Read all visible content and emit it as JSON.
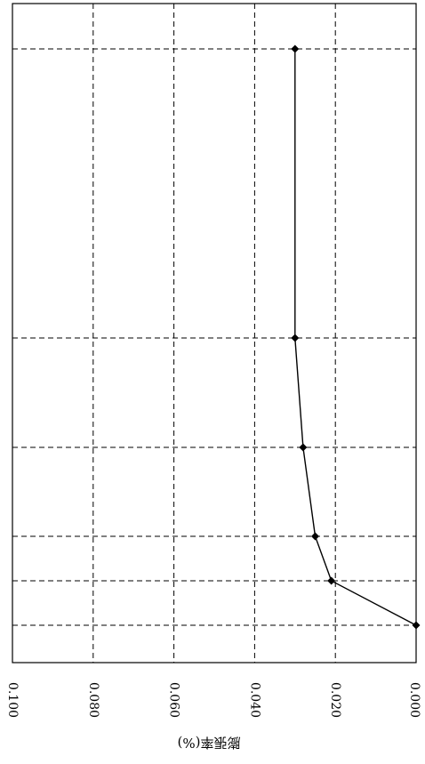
{
  "chart_data": {
    "type": "line",
    "orientation": "rotated-90",
    "ylabel": "膨張率(%)",
    "y_ticks": [
      "0.100",
      "0.080",
      "0.060",
      "0.040",
      "0.020",
      "0.000"
    ],
    "ylim": [
      0.0,
      0.1
    ],
    "grid": true,
    "grid_style": "dashed",
    "series": [
      {
        "marker": "diamond",
        "color": "#000000",
        "x": [
          0,
          1,
          2,
          3,
          4,
          5
        ],
        "values": [
          0.0,
          0.021,
          0.025,
          0.028,
          0.03,
          0.03
        ]
      }
    ]
  },
  "colors": {
    "line": "#000000",
    "grid": "#000000",
    "background": "#ffffff"
  }
}
